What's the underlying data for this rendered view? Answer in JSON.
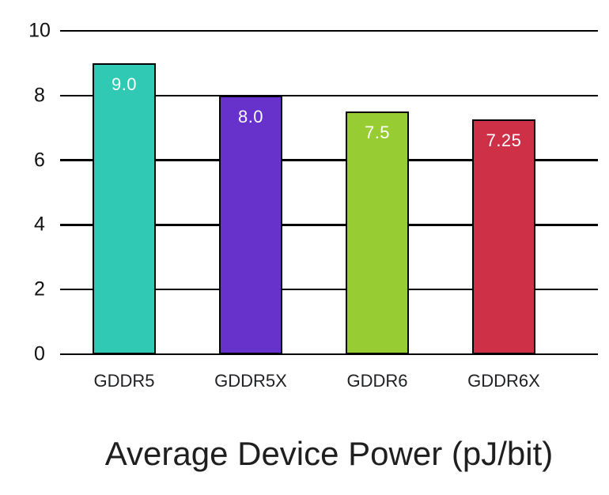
{
  "chart_data": {
    "type": "bar",
    "title": "Average Device Power (pJ/bit)",
    "categories": [
      "GDDR5",
      "GDDR5X",
      "GDDR6",
      "GDDR6X"
    ],
    "values": [
      9.0,
      8.0,
      7.5,
      7.25
    ],
    "value_labels": [
      "9.0",
      "8.0",
      "7.5",
      "7.25"
    ],
    "bar_colors": [
      "#2fc9b4",
      "#6632cb",
      "#97cc32",
      "#ce3147"
    ],
    "value_label_color": "#ffffff",
    "xlabel": "",
    "ylabel": "",
    "ylim": [
      0,
      10
    ],
    "yticks": [
      0,
      2,
      4,
      6,
      8,
      10
    ],
    "grid": true,
    "gridline_color": "#000000",
    "tick_color": "#111111",
    "category_label_color": "#202124",
    "title_color": "#1f1f1f",
    "background": "#ffffff",
    "legend_position": "none"
  }
}
